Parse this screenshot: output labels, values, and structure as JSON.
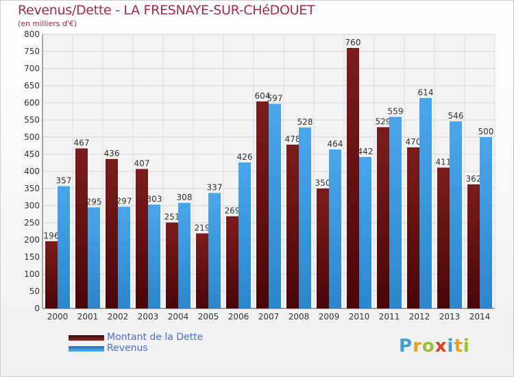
{
  "chart_data": {
    "type": "bar",
    "title": "Revenus/Dette - LA FRESNAYE-SUR-CHéDOUET",
    "subtitle": "(en milliers d'€)",
    "categories": [
      "2000",
      "2001",
      "2002",
      "2003",
      "2004",
      "2005",
      "2006",
      "2007",
      "2008",
      "2009",
      "2010",
      "2011",
      "2012",
      "2013",
      "2014"
    ],
    "series": [
      {
        "name": "Montant de la Dette",
        "values": [
          196,
          467,
          436,
          407,
          251,
          219,
          269,
          604,
          478,
          350,
          760,
          529,
          470,
          411,
          362
        ],
        "color": "#7b1c1c"
      },
      {
        "name": "Revenus",
        "values": [
          357,
          295,
          297,
          303,
          308,
          337,
          426,
          597,
          528,
          464,
          442,
          559,
          614,
          546,
          500
        ],
        "color": "#3d9be0"
      }
    ],
    "yticks": [
      0,
      50,
      100,
      150,
      200,
      250,
      300,
      350,
      400,
      450,
      500,
      550,
      600,
      650,
      700,
      750,
      800
    ],
    "ylim": [
      0,
      800
    ],
    "grid": true,
    "legend_position": "bottom-left"
  },
  "logo": {
    "text": "Proxiti",
    "letters": [
      {
        "ch": "P",
        "color": "#3aa0d8"
      },
      {
        "ch": "r",
        "color": "#e8a020"
      },
      {
        "ch": "o",
        "color": "#9ac030"
      },
      {
        "ch": "x",
        "color": "#e04020"
      },
      {
        "ch": "i",
        "color": "#3aa0d8"
      },
      {
        "ch": "t",
        "color": "#e8a020"
      },
      {
        "ch": "i",
        "color": "#9ac030"
      }
    ]
  }
}
